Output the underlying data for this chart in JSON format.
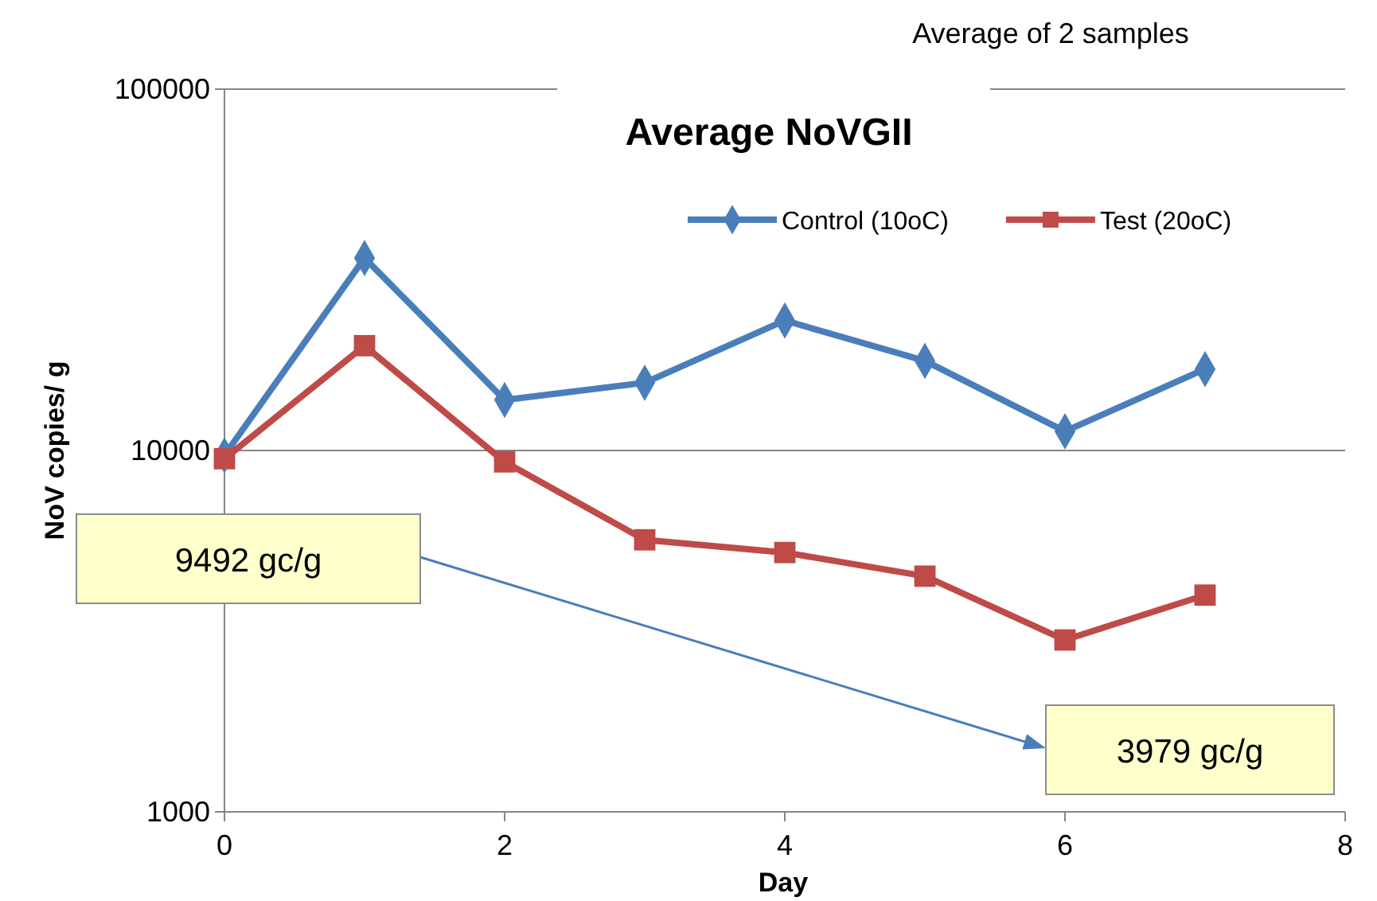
{
  "chart_data": {
    "type": "line",
    "title": "Average  NoVGII",
    "xlabel": "Day",
    "ylabel": "NoV copies/ g",
    "x": [
      0,
      1,
      2,
      3,
      4,
      5,
      6,
      7
    ],
    "series": [
      {
        "name": "Control (10oC)",
        "color": "#4a7ebb",
        "marker": "diamond",
        "values": [
          9700,
          34100,
          13800,
          15400,
          22900,
          17700,
          11300,
          16800
        ]
      },
      {
        "name": "Test (20oC)",
        "color": "#be4b48",
        "marker": "square",
        "values": [
          9492,
          19500,
          9300,
          5660,
          5220,
          4490,
          2990,
          3979
        ]
      }
    ],
    "xlim": [
      0,
      8
    ],
    "xticks": [
      0,
      2,
      4,
      6,
      8
    ],
    "ylim": [
      1000,
      100000
    ],
    "yticks": [
      1000,
      10000,
      100000
    ],
    "log": "y",
    "grid": "y",
    "legend": "top right",
    "line_style": "solid",
    "annotations": [
      "Average of 2 samples",
      "9492 gc/g",
      "3979 gc/g"
    ]
  }
}
